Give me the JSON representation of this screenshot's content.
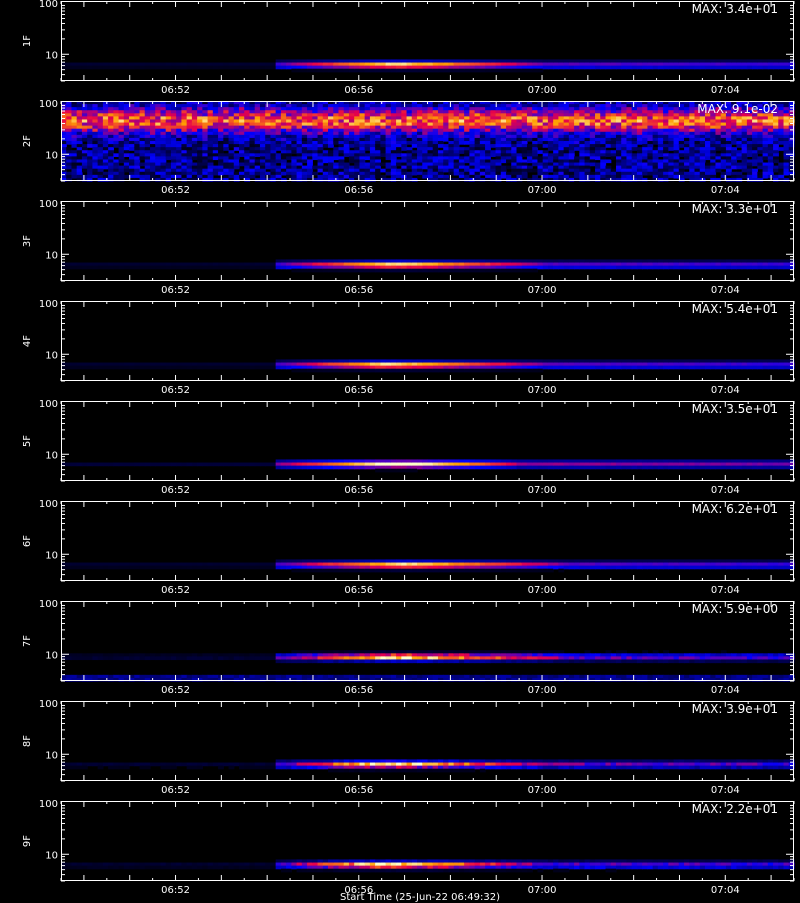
{
  "chart_data": [
    {
      "type": "heatmap",
      "ylabel": "1F",
      "max_label": "MAX: 3.4e+01",
      "xticklabels": [
        "06:52",
        "06:56",
        "07:00",
        "07:04"
      ],
      "yticklabels": [
        "10",
        "100"
      ],
      "x_start_min": 409.5,
      "x_end_min": 425.5,
      "ylim": [
        3,
        110
      ],
      "yscale": "log",
      "profile": "continuum",
      "intensity": 1.0,
      "band": {
        "y_center": 6.2,
        "x_start_min": 414.5,
        "x_peak_min": 416.8,
        "x_fade_min": 420.0
      }
    },
    {
      "type": "heatmap",
      "ylabel": "2F",
      "max_label": "MAX: 9.1e-02",
      "xticklabels": [
        "06:52",
        "06:56",
        "07:00",
        "07:04"
      ],
      "yticklabels": [
        "10",
        "100"
      ],
      "x_start_min": 409.5,
      "x_end_min": 425.5,
      "ylim": [
        3,
        110
      ],
      "yscale": "log",
      "profile": "noise",
      "intensity": 1.0,
      "band": {
        "y_center": 45,
        "x_start_min": 409.5,
        "x_peak_min": 409.5,
        "x_fade_min": 425.5
      }
    },
    {
      "type": "heatmap",
      "ylabel": "3F",
      "max_label": "MAX: 3.3e+01",
      "xticklabels": [
        "06:52",
        "06:56",
        "07:00",
        "07:04"
      ],
      "yticklabels": [
        "10",
        "100"
      ],
      "x_start_min": 409.5,
      "x_end_min": 425.5,
      "ylim": [
        3,
        110
      ],
      "yscale": "log",
      "profile": "continuum",
      "intensity": 1.0,
      "band": {
        "y_center": 6.2,
        "x_start_min": 414.5,
        "x_peak_min": 416.8,
        "x_fade_min": 420.0
      }
    },
    {
      "type": "heatmap",
      "ylabel": "4F",
      "max_label": "MAX: 5.4e+01",
      "xticklabels": [
        "06:52",
        "06:56",
        "07:00",
        "07:04"
      ],
      "yticklabels": [
        "10",
        "100"
      ],
      "x_start_min": 409.5,
      "x_end_min": 425.5,
      "ylim": [
        3,
        110
      ],
      "yscale": "log",
      "profile": "continuum",
      "intensity": 1.0,
      "band": {
        "y_center": 6.2,
        "x_start_min": 414.5,
        "x_peak_min": 416.6,
        "x_fade_min": 420.0
      }
    },
    {
      "type": "heatmap",
      "ylabel": "5F",
      "max_label": "MAX: 3.5e+01",
      "xticklabels": [
        "06:52",
        "06:56",
        "07:00",
        "07:04"
      ],
      "yticklabels": [
        "10",
        "100"
      ],
      "x_start_min": 409.5,
      "x_end_min": 425.5,
      "ylim": [
        3,
        110
      ],
      "yscale": "log",
      "profile": "continuum",
      "intensity": 1.1,
      "band": {
        "y_center": 6.4,
        "x_start_min": 414.5,
        "x_peak_min": 416.9,
        "x_fade_min": 419.5
      }
    },
    {
      "type": "heatmap",
      "ylabel": "6F",
      "max_label": "MAX: 6.2e+01",
      "xticklabels": [
        "06:52",
        "06:56",
        "07:00",
        "07:04"
      ],
      "yticklabels": [
        "10",
        "100"
      ],
      "x_start_min": 409.5,
      "x_end_min": 425.5,
      "ylim": [
        3,
        110
      ],
      "yscale": "log",
      "profile": "continuum",
      "intensity": 1.0,
      "band": {
        "y_center": 6.2,
        "x_start_min": 414.5,
        "x_peak_min": 417.0,
        "x_fade_min": 420.5
      }
    },
    {
      "type": "heatmap",
      "ylabel": "7F",
      "max_label": "MAX: 5.9e+00",
      "xticklabels": [
        "06:52",
        "06:56",
        "07:00",
        "07:04"
      ],
      "yticklabels": [
        "10",
        "100"
      ],
      "x_start_min": 409.5,
      "x_end_min": 425.5,
      "ylim": [
        3,
        110
      ],
      "yscale": "log",
      "profile": "speckled",
      "intensity": 1.0,
      "band": {
        "y_center": 8.8,
        "x_start_min": 414.5,
        "x_peak_min": 416.8,
        "x_fade_min": 420.5
      }
    },
    {
      "type": "heatmap",
      "ylabel": "8F",
      "max_label": "MAX: 3.9e+01",
      "xticklabels": [
        "06:52",
        "06:56",
        "07:00",
        "07:04"
      ],
      "yticklabels": [
        "10",
        "100"
      ],
      "x_start_min": 409.5,
      "x_end_min": 425.5,
      "ylim": [
        3,
        110
      ],
      "yscale": "log",
      "profile": "speckled",
      "intensity": 1.0,
      "band": {
        "y_center": 6.3,
        "x_start_min": 414.5,
        "x_peak_min": 416.5,
        "x_fade_min": 420.0
      }
    },
    {
      "type": "heatmap",
      "ylabel": "9F",
      "max_label": "MAX: 2.2e+01",
      "xticklabels": [
        "06:52",
        "06:56",
        "07:00",
        "07:04"
      ],
      "yticklabels": [
        "10",
        "100"
      ],
      "x_start_min": 409.5,
      "x_end_min": 425.5,
      "ylim": [
        3,
        110
      ],
      "yscale": "log",
      "profile": "speckled",
      "intensity": 1.0,
      "band": {
        "y_center": 6.2,
        "x_start_min": 414.5,
        "x_peak_min": 416.5,
        "x_fade_min": 420.0
      }
    }
  ],
  "x_axis": {
    "label": "Start Time (25-Jun-22 06:49:32)",
    "tick_minutes": [
      412,
      416,
      420,
      424
    ]
  }
}
